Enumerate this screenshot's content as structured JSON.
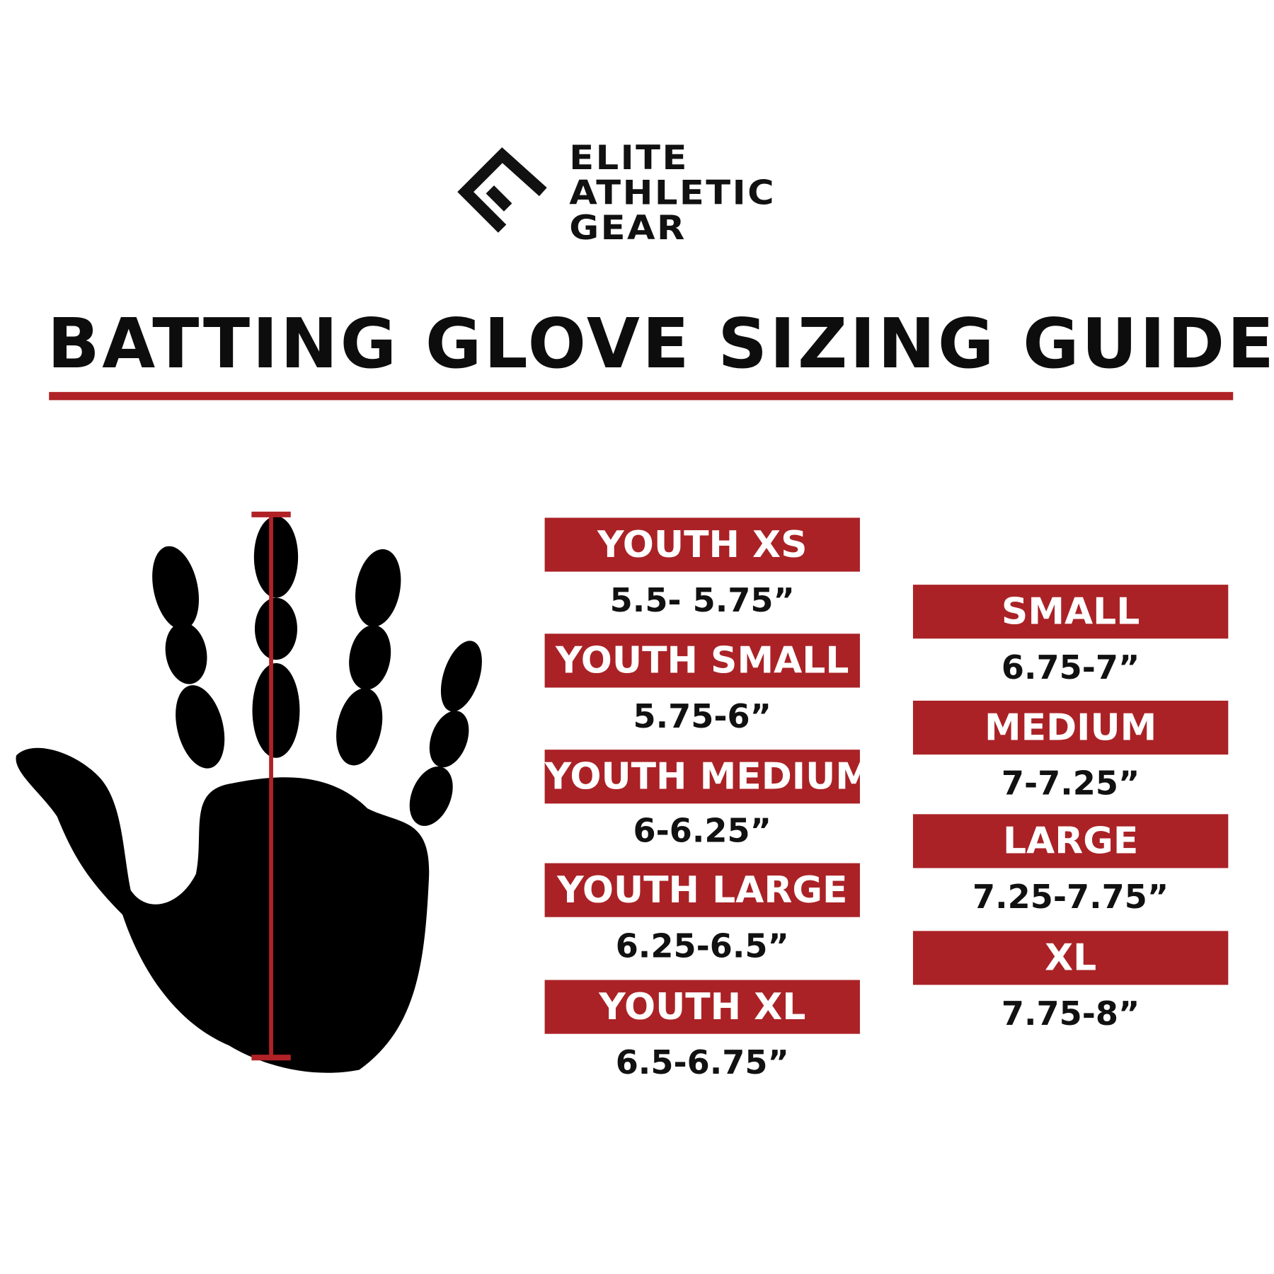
{
  "brand": {
    "logo_lines": [
      "ELITE",
      "ATHLETIC",
      "GEAR"
    ],
    "logo_icon": "e-chevron-logo"
  },
  "title": "BATTING GLOVE SIZING GUIDE",
  "colors": {
    "accent": "#aa2226",
    "text": "#111111"
  },
  "youth_sizes": [
    {
      "label": "YOUTH XS",
      "range": "5.5- 5.75”"
    },
    {
      "label": "YOUTH SMALL",
      "range": "5.75-6”"
    },
    {
      "label": "YOUTH MEDIUM",
      "range": "6-6.25”"
    },
    {
      "label": "YOUTH LARGE",
      "range": "6.25-6.5”"
    },
    {
      "label": "YOUTH XL",
      "range": "6.5-6.75”"
    }
  ],
  "adult_sizes": [
    {
      "label": "SMALL",
      "range": "6.75-7”"
    },
    {
      "label": "MEDIUM",
      "range": "7-7.25”"
    },
    {
      "label": "LARGE",
      "range": "7.25-7.75”"
    },
    {
      "label": "XL",
      "range": "7.75-8”"
    }
  ],
  "illustration": "hand-measurement-icon"
}
